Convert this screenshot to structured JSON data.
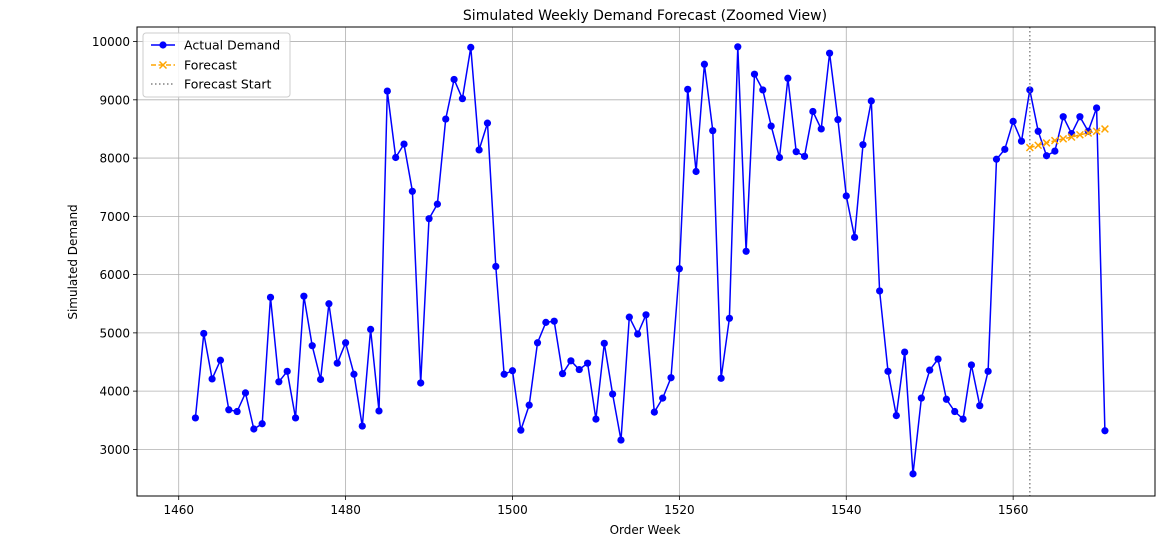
{
  "chart_data": {
    "type": "line",
    "title": "Simulated Weekly Demand Forecast (Zoomed View)",
    "xlabel": "Order Week",
    "ylabel": "Simulated Demand",
    "xlim": [
      1455,
      1577
    ],
    "ylim": [
      2200,
      10250
    ],
    "xticks": [
      1460,
      1480,
      1500,
      1520,
      1540,
      1560
    ],
    "yticks": [
      3000,
      4000,
      5000,
      6000,
      7000,
      8000,
      9000,
      10000
    ],
    "grid": true,
    "legend_position": "top-left",
    "series": [
      {
        "name": "Actual Demand",
        "color": "#0000ff",
        "marker": "circle",
        "x": [
          1462,
          1463,
          1464,
          1465,
          1466,
          1467,
          1468,
          1469,
          1470,
          1471,
          1472,
          1473,
          1474,
          1475,
          1476,
          1477,
          1478,
          1479,
          1480,
          1481,
          1482,
          1483,
          1484,
          1485,
          1486,
          1487,
          1488,
          1489,
          1490,
          1491,
          1492,
          1493,
          1494,
          1495,
          1496,
          1497,
          1498,
          1499,
          1500,
          1501,
          1502,
          1503,
          1504,
          1505,
          1506,
          1507,
          1508,
          1509,
          1510,
          1511,
          1512,
          1513,
          1514,
          1515,
          1516,
          1517,
          1518,
          1519,
          1520,
          1521,
          1522,
          1523,
          1524,
          1525,
          1526,
          1527,
          1528,
          1529,
          1530,
          1531,
          1532,
          1533,
          1534,
          1535,
          1536,
          1537,
          1538,
          1539,
          1540,
          1541,
          1542,
          1543,
          1544,
          1545,
          1546,
          1547,
          1548,
          1549,
          1550,
          1551,
          1552,
          1553,
          1554,
          1555,
          1556,
          1557,
          1558,
          1559,
          1560,
          1561,
          1562,
          1563,
          1564,
          1565,
          1566,
          1567,
          1568,
          1569,
          1570,
          1571
        ],
        "y": [
          3540,
          4990,
          4210,
          4530,
          3680,
          3650,
          3970,
          3350,
          3440,
          5610,
          4160,
          4340,
          3540,
          5630,
          4780,
          4200,
          5500,
          4480,
          4830,
          4290,
          3400,
          5060,
          3660,
          9150,
          8010,
          8240,
          7430,
          4140,
          6960,
          7210,
          8670,
          9350,
          9020,
          9900,
          8140,
          8600,
          6140,
          4290,
          4350,
          3330,
          3760,
          4830,
          5180,
          5200,
          4300,
          4520,
          4370,
          4480,
          3520,
          4820,
          3950,
          3160,
          5270,
          4980,
          5310,
          3640,
          3880,
          4230,
          6100,
          9180,
          7770,
          9610,
          8470,
          4220,
          5250,
          9910,
          6400,
          9440,
          9170,
          8550,
          8010,
          9370,
          8110,
          8030,
          8800,
          8500,
          9800,
          8660,
          7350,
          6640,
          8230,
          8980,
          5720,
          4340,
          3580,
          4670,
          2580,
          3880,
          4360,
          4550,
          3860,
          3650,
          3520,
          4450,
          3750,
          4340,
          7980,
          8150,
          8630,
          8290,
          9170,
          8460,
          8040,
          8120,
          8710,
          8420,
          8710,
          8460,
          8860,
          3320
        ]
      },
      {
        "name": "Forecast",
        "color": "#ffa500",
        "marker": "x",
        "x": [
          1562,
          1563,
          1564,
          1565,
          1566,
          1567,
          1568,
          1569,
          1570,
          1571
        ],
        "y": [
          8180,
          8220,
          8260,
          8300,
          8330,
          8360,
          8400,
          8430,
          8460,
          8500
        ]
      }
    ],
    "vlines": [
      {
        "name": "Forecast Start",
        "x": 1562,
        "color": "#808080",
        "style": "dotted"
      }
    ]
  }
}
